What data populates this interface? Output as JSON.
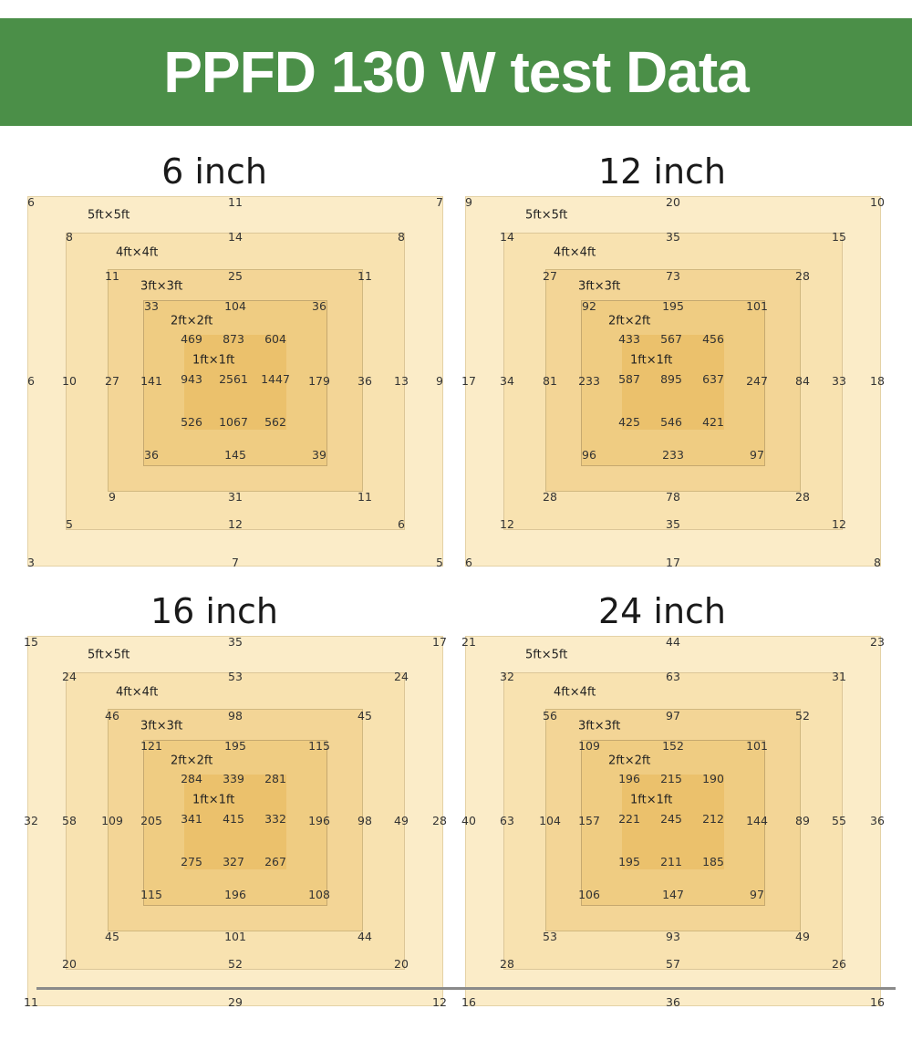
{
  "title": "PPFD 130 W test Data",
  "colors": {
    "banner": "#4b8f48",
    "text": "#ffffff"
  },
  "labels": {
    "l0": "5ft×5ft",
    "l1": "4ft×4ft",
    "l2": "3ft×3ft",
    "l3": "2ft×2ft",
    "l4": "1ft×1ft"
  },
  "panels": [
    {
      "title": "6 inch",
      "l0": [
        "6",
        "11",
        "7",
        "6",
        "9",
        "3",
        "7",
        "5"
      ],
      "l1": [
        "8",
        "14",
        "8",
        "10",
        "13",
        "5",
        "12",
        "6"
      ],
      "l2": [
        "11",
        "25",
        "11",
        "27",
        "36",
        "9",
        "31",
        "11"
      ],
      "l3": [
        "33",
        "104",
        "36",
        "141",
        "179",
        "36",
        "145",
        "39"
      ],
      "center": [
        "469",
        "873",
        "604",
        "943",
        "2561",
        "1447",
        "526",
        "1067",
        "562"
      ]
    },
    {
      "title": "12 inch",
      "l0": [
        "9",
        "20",
        "10",
        "17",
        "18",
        "6",
        "17",
        "8"
      ],
      "l1": [
        "14",
        "35",
        "15",
        "34",
        "33",
        "12",
        "35",
        "12"
      ],
      "l2": [
        "27",
        "73",
        "28",
        "81",
        "84",
        "28",
        "78",
        "28"
      ],
      "l3": [
        "92",
        "195",
        "101",
        "233",
        "247",
        "96",
        "233",
        "97"
      ],
      "center": [
        "433",
        "567",
        "456",
        "587",
        "895",
        "637",
        "425",
        "546",
        "421"
      ]
    },
    {
      "title": "16 inch",
      "l0": [
        "15",
        "35",
        "17",
        "32",
        "28",
        "11",
        "29",
        "12"
      ],
      "l1": [
        "24",
        "53",
        "24",
        "58",
        "49",
        "20",
        "52",
        "20"
      ],
      "l2": [
        "46",
        "98",
        "45",
        "109",
        "98",
        "45",
        "101",
        "44"
      ],
      "l3": [
        "121",
        "195",
        "115",
        "205",
        "196",
        "115",
        "196",
        "108"
      ],
      "center": [
        "284",
        "339",
        "281",
        "341",
        "415",
        "332",
        "275",
        "327",
        "267"
      ]
    },
    {
      "title": "24 inch",
      "l0": [
        "21",
        "44",
        "23",
        "40",
        "36",
        "16",
        "36",
        "16"
      ],
      "l1": [
        "32",
        "63",
        "31",
        "63",
        "55",
        "28",
        "57",
        "26"
      ],
      "l2": [
        "56",
        "97",
        "52",
        "104",
        "89",
        "53",
        "93",
        "49"
      ],
      "l3": [
        "109",
        "152",
        "101",
        "157",
        "144",
        "106",
        "147",
        "97"
      ],
      "center": [
        "196",
        "215",
        "190",
        "221",
        "245",
        "212",
        "195",
        "211",
        "185"
      ]
    }
  ]
}
